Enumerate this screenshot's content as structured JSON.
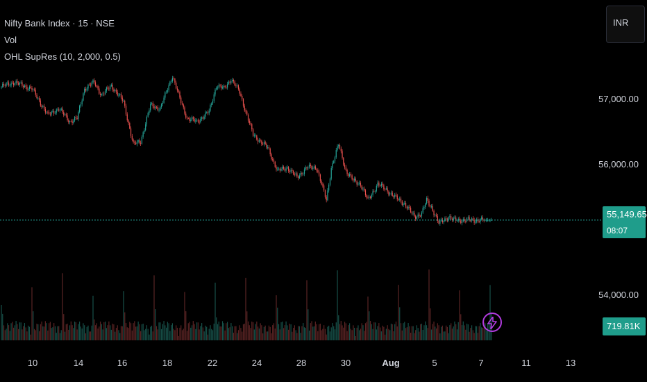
{
  "legend": {
    "symbol": "Nifty Bank Index · 15 · NSE",
    "vol": "Vol",
    "indicator": "OHL SupRes (10, 2,000, 0.5)"
  },
  "currency_button": "INR",
  "last_price": {
    "value": "55,149.65",
    "countdown": "08:07"
  },
  "volume_badge": "719.81K",
  "colors": {
    "up": "#26a69a",
    "down": "#ef5350",
    "last_price_line": "#26a69a",
    "badge_bg": "#1f9d8b",
    "alert_icon": "#b23ce0",
    "axis_text": "#d1d4dc"
  },
  "icons": {
    "alert": "lightning-bolt-icon"
  },
  "chart_data": {
    "type": "candlestick",
    "series": [
      {
        "kind": "close_path_approx",
        "x_index": [
          0,
          10,
          25,
          38,
          47,
          56,
          62,
          68,
          76,
          82,
          90,
          100,
          108,
          114,
          122,
          130,
          136,
          140,
          146,
          152,
          160,
          170,
          176,
          182,
          188,
          195,
          200,
          206,
          212,
          218,
          226,
          234,
          242,
          250,
          258,
          262,
          266,
          270,
          276,
          282,
          288,
          294,
          300,
          308,
          316,
          322,
          330,
          338,
          344,
          348,
          352,
          358,
          362,
          366,
          370,
          376,
          382,
          388,
          392,
          400
        ],
        "close": [
          57180,
          57250,
          57150,
          56750,
          56850,
          56650,
          56700,
          57150,
          57250,
          57050,
          57200,
          56950,
          56300,
          56350,
          56900,
          56850,
          57150,
          57350,
          57000,
          56700,
          56650,
          56800,
          57200,
          57150,
          57300,
          57100,
          56800,
          56450,
          56350,
          56250,
          55900,
          55950,
          55800,
          55950,
          55950,
          55700,
          55450,
          55950,
          56300,
          55900,
          55750,
          55700,
          55450,
          55700,
          55600,
          55500,
          55400,
          55200,
          55250,
          55450,
          55350,
          55100,
          55150,
          55200,
          55150,
          55149.65,
          55149.65,
          55149.65,
          55149.65,
          55149.65
        ]
      }
    ],
    "x_tick_labels": [
      "10",
      "14",
      "16",
      "18",
      "22",
      "24",
      "28",
      "30",
      "Aug",
      "5",
      "7",
      "11",
      "13"
    ],
    "y_tick_labels": [
      "57,000.00",
      "56,000.00",
      "54,000.00"
    ],
    "y_ticks": [
      57000,
      56000,
      54000
    ],
    "last_price": 55149.65,
    "volume_last": "719.81K",
    "grid": false
  }
}
